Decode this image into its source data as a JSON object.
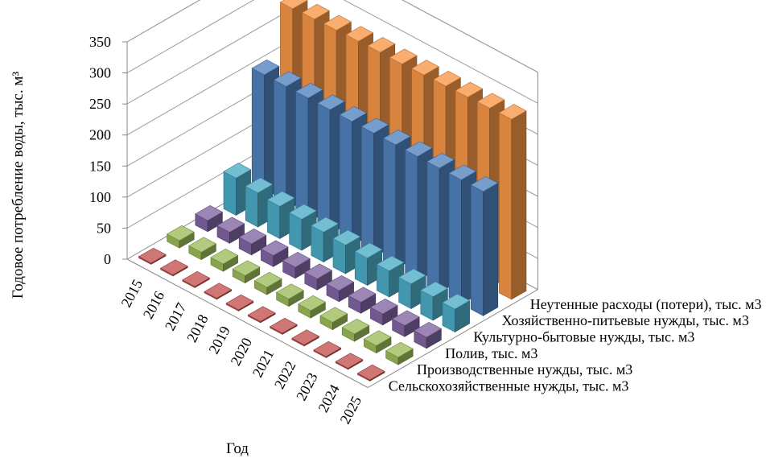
{
  "chart_data": {
    "type": "bar",
    "subtype": "3d-column",
    "title": "",
    "xlabel": "Год",
    "ylabel": "Годовое потребление воды, тыс. м³",
    "ylim": [
      0,
      350
    ],
    "yticks": [
      "0",
      "50",
      "100",
      "150",
      "200",
      "250",
      "300",
      "350"
    ],
    "grid": true,
    "legend": "none",
    "categories": [
      "2015",
      "2016",
      "2017",
      "2018",
      "2019",
      "2020",
      "2021",
      "2022",
      "2023",
      "2024",
      "2025"
    ],
    "series": [
      {
        "name": "Сельскохозяйственные нужды, тыс. м3",
        "color": "#c0504d",
        "values": [
          2,
          2,
          2,
          2,
          2,
          2,
          2,
          2,
          2,
          2,
          2
        ]
      },
      {
        "name": "Производственные нужды, тыс. м3",
        "color": "#9bbb59",
        "values": [
          12,
          12,
          12,
          12,
          12,
          12,
          12,
          12,
          12,
          12,
          12
        ]
      },
      {
        "name": "Полив, тыс. м3",
        "color": "#8064a2",
        "values": [
          18,
          18,
          18,
          18,
          18,
          18,
          18,
          18,
          18,
          18,
          18
        ]
      },
      {
        "name": "Культурно-бытовые нужды, тыс. м3",
        "color": "#4bacc6",
        "values": [
          60,
          55,
          52,
          50,
          48,
          46,
          44,
          42,
          40,
          38,
          37
        ]
      },
      {
        "name": "Хозяйственно-питьевые нужды, тыс. м3",
        "color": "#4f81bd",
        "values": [
          200,
          200,
          200,
          200,
          200,
          200,
          200,
          200,
          200,
          200,
          200
        ]
      },
      {
        "name": "Неутенные расходы (потери), тыс. м3",
        "color": "#f79646",
        "values": [
          280,
          282,
          283,
          284,
          285,
          285,
          286,
          287,
          288,
          289,
          290
        ]
      }
    ]
  }
}
